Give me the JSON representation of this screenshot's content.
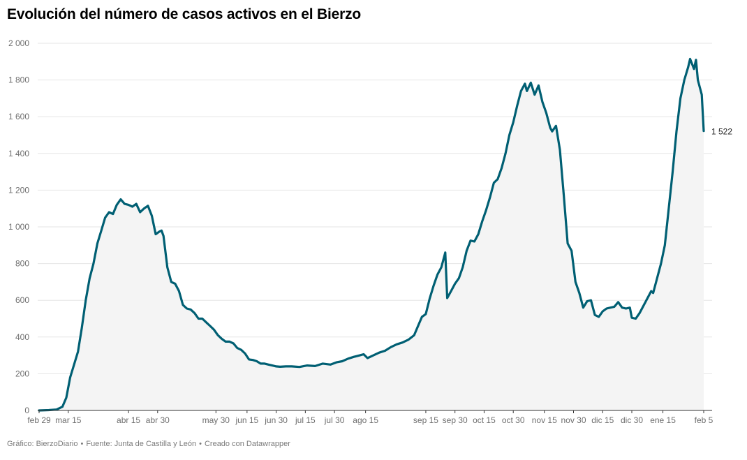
{
  "title": "Evolución del número de casos activos en el Bierzo",
  "footer": {
    "graphic": "Gráfico: BierzoDiario",
    "source": "Fuente: Junta de Castilla y León",
    "tool": "Creado con Datawrapper",
    "separator": "•"
  },
  "colors": {
    "line": "#005f73",
    "area": "#f4f4f4",
    "grid": "#e6e6e6",
    "axis": "#333333",
    "tick_text": "#6e6e6e"
  },
  "chart_data": {
    "type": "area",
    "title": "Evolución del número de casos activos en el Bierzo",
    "xlabel": "",
    "ylabel": "",
    "ylim": [
      0,
      2000
    ],
    "yticks": [
      0,
      200,
      400,
      600,
      800,
      1000,
      1200,
      1400,
      1600,
      1800,
      2000
    ],
    "ytick_labels": [
      "0",
      "200",
      "400",
      "600",
      "800",
      "1 000",
      "1 200",
      "1 400",
      "1 600",
      "1 800",
      "2 000"
    ],
    "xlim": [
      "2020-02-29",
      "2021-02-05"
    ],
    "xticks": [
      {
        "date": "2020-02-29",
        "label": "feb 29"
      },
      {
        "date": "2020-03-15",
        "label": "mar 15"
      },
      {
        "date": "2020-04-15",
        "label": "abr 15"
      },
      {
        "date": "2020-04-30",
        "label": "abr 30"
      },
      {
        "date": "2020-05-30",
        "label": "may 30"
      },
      {
        "date": "2020-06-15",
        "label": "jun 15"
      },
      {
        "date": "2020-06-30",
        "label": "jun 30"
      },
      {
        "date": "2020-07-15",
        "label": "jul 15"
      },
      {
        "date": "2020-07-30",
        "label": "jul 30"
      },
      {
        "date": "2020-08-15",
        "label": "ago 15"
      },
      {
        "date": "2020-09-15",
        "label": "sep 15"
      },
      {
        "date": "2020-09-30",
        "label": "sep 30"
      },
      {
        "date": "2020-10-15",
        "label": "oct 15"
      },
      {
        "date": "2020-10-30",
        "label": "oct 30"
      },
      {
        "date": "2020-11-15",
        "label": "nov 15"
      },
      {
        "date": "2020-11-30",
        "label": "nov 30"
      },
      {
        "date": "2020-12-15",
        "label": "dic 15"
      },
      {
        "date": "2020-12-30",
        "label": "dic 30"
      },
      {
        "date": "2021-01-15",
        "label": "ene 15"
      },
      {
        "date": "2021-02-05",
        "label": "feb 5"
      }
    ],
    "grid": true,
    "end_label": "1 522",
    "series": [
      {
        "points": [
          [
            "2020-02-29",
            0
          ],
          [
            "2020-03-05",
            2
          ],
          [
            "2020-03-09",
            5
          ],
          [
            "2020-03-12",
            20
          ],
          [
            "2020-03-14",
            70
          ],
          [
            "2020-03-16",
            180
          ],
          [
            "2020-03-18",
            250
          ],
          [
            "2020-03-20",
            320
          ],
          [
            "2020-03-22",
            450
          ],
          [
            "2020-03-24",
            600
          ],
          [
            "2020-03-26",
            720
          ],
          [
            "2020-03-28",
            800
          ],
          [
            "2020-03-30",
            910
          ],
          [
            "2020-04-01",
            980
          ],
          [
            "2020-04-03",
            1050
          ],
          [
            "2020-04-05",
            1080
          ],
          [
            "2020-04-07",
            1070
          ],
          [
            "2020-04-09",
            1120
          ],
          [
            "2020-04-11",
            1150
          ],
          [
            "2020-04-13",
            1125
          ],
          [
            "2020-04-15",
            1120
          ],
          [
            "2020-04-17",
            1110
          ],
          [
            "2020-04-19",
            1125
          ],
          [
            "2020-04-21",
            1080
          ],
          [
            "2020-04-23",
            1100
          ],
          [
            "2020-04-25",
            1115
          ],
          [
            "2020-04-27",
            1060
          ],
          [
            "2020-04-29",
            960
          ],
          [
            "2020-05-01",
            975
          ],
          [
            "2020-05-02",
            980
          ],
          [
            "2020-05-03",
            950
          ],
          [
            "2020-05-05",
            780
          ],
          [
            "2020-05-07",
            700
          ],
          [
            "2020-05-09",
            690
          ],
          [
            "2020-05-11",
            650
          ],
          [
            "2020-05-13",
            575
          ],
          [
            "2020-05-15",
            555
          ],
          [
            "2020-05-17",
            550
          ],
          [
            "2020-05-19",
            530
          ],
          [
            "2020-05-21",
            500
          ],
          [
            "2020-05-23",
            500
          ],
          [
            "2020-05-25",
            480
          ],
          [
            "2020-05-27",
            460
          ],
          [
            "2020-05-29",
            440
          ],
          [
            "2020-05-31",
            410
          ],
          [
            "2020-06-02",
            390
          ],
          [
            "2020-06-04",
            375
          ],
          [
            "2020-06-06",
            375
          ],
          [
            "2020-06-08",
            365
          ],
          [
            "2020-06-10",
            340
          ],
          [
            "2020-06-12",
            330
          ],
          [
            "2020-06-14",
            310
          ],
          [
            "2020-06-16",
            278
          ],
          [
            "2020-06-18",
            275
          ],
          [
            "2020-06-20",
            268
          ],
          [
            "2020-06-22",
            255
          ],
          [
            "2020-06-24",
            255
          ],
          [
            "2020-06-26",
            250
          ],
          [
            "2020-06-28",
            245
          ],
          [
            "2020-06-30",
            240
          ],
          [
            "2020-07-02",
            238
          ],
          [
            "2020-07-05",
            240
          ],
          [
            "2020-07-08",
            240
          ],
          [
            "2020-07-12",
            237
          ],
          [
            "2020-07-16",
            245
          ],
          [
            "2020-07-20",
            242
          ],
          [
            "2020-07-24",
            255
          ],
          [
            "2020-07-28",
            250
          ],
          [
            "2020-07-31",
            262
          ],
          [
            "2020-08-03",
            268
          ],
          [
            "2020-08-06",
            282
          ],
          [
            "2020-08-09",
            292
          ],
          [
            "2020-08-12",
            300
          ],
          [
            "2020-08-14",
            306
          ],
          [
            "2020-08-16",
            285
          ],
          [
            "2020-08-19",
            300
          ],
          [
            "2020-08-22",
            315
          ],
          [
            "2020-08-25",
            325
          ],
          [
            "2020-08-28",
            345
          ],
          [
            "2020-08-31",
            360
          ],
          [
            "2020-09-03",
            370
          ],
          [
            "2020-09-06",
            385
          ],
          [
            "2020-09-09",
            410
          ],
          [
            "2020-09-11",
            460
          ],
          [
            "2020-09-13",
            510
          ],
          [
            "2020-09-15",
            525
          ],
          [
            "2020-09-17",
            610
          ],
          [
            "2020-09-19",
            680
          ],
          [
            "2020-09-21",
            740
          ],
          [
            "2020-09-23",
            780
          ],
          [
            "2020-09-25",
            860
          ],
          [
            "2020-09-26",
            612
          ],
          [
            "2020-09-28",
            650
          ],
          [
            "2020-09-30",
            690
          ],
          [
            "2020-10-02",
            720
          ],
          [
            "2020-10-04",
            780
          ],
          [
            "2020-10-06",
            870
          ],
          [
            "2020-10-08",
            925
          ],
          [
            "2020-10-10",
            920
          ],
          [
            "2020-10-12",
            960
          ],
          [
            "2020-10-14",
            1030
          ],
          [
            "2020-10-16",
            1090
          ],
          [
            "2020-10-18",
            1160
          ],
          [
            "2020-10-20",
            1240
          ],
          [
            "2020-10-22",
            1260
          ],
          [
            "2020-10-24",
            1320
          ],
          [
            "2020-10-26",
            1400
          ],
          [
            "2020-10-28",
            1500
          ],
          [
            "2020-10-30",
            1570
          ],
          [
            "2020-11-01",
            1660
          ],
          [
            "2020-11-03",
            1740
          ],
          [
            "2020-11-05",
            1780
          ],
          [
            "2020-11-06",
            1740
          ],
          [
            "2020-11-08",
            1785
          ],
          [
            "2020-11-10",
            1720
          ],
          [
            "2020-11-12",
            1770
          ],
          [
            "2020-11-14",
            1680
          ],
          [
            "2020-11-16",
            1620
          ],
          [
            "2020-11-18",
            1540
          ],
          [
            "2020-11-19",
            1520
          ],
          [
            "2020-11-21",
            1550
          ],
          [
            "2020-11-23",
            1420
          ],
          [
            "2020-11-25",
            1170
          ],
          [
            "2020-11-27",
            910
          ],
          [
            "2020-11-29",
            870
          ],
          [
            "2020-12-01",
            700
          ],
          [
            "2020-12-03",
            640
          ],
          [
            "2020-12-05",
            560
          ],
          [
            "2020-12-07",
            595
          ],
          [
            "2020-12-09",
            600
          ],
          [
            "2020-12-11",
            520
          ],
          [
            "2020-12-13",
            510
          ],
          [
            "2020-12-15",
            540
          ],
          [
            "2020-12-17",
            555
          ],
          [
            "2020-12-19",
            560
          ],
          [
            "2020-12-21",
            565
          ],
          [
            "2020-12-23",
            590
          ],
          [
            "2020-12-25",
            560
          ],
          [
            "2020-12-27",
            555
          ],
          [
            "2020-12-29",
            560
          ],
          [
            "2020-12-30",
            505
          ],
          [
            "2021-01-01",
            500
          ],
          [
            "2021-01-03",
            530
          ],
          [
            "2021-01-06",
            590
          ],
          [
            "2021-01-09",
            650
          ],
          [
            "2021-01-10",
            640
          ],
          [
            "2021-01-12",
            720
          ],
          [
            "2021-01-14",
            800
          ],
          [
            "2021-01-16",
            900
          ],
          [
            "2021-01-18",
            1100
          ],
          [
            "2021-01-20",
            1300
          ],
          [
            "2021-01-22",
            1520
          ],
          [
            "2021-01-24",
            1700
          ],
          [
            "2021-01-26",
            1800
          ],
          [
            "2021-01-28",
            1870
          ],
          [
            "2021-01-29",
            1915
          ],
          [
            "2021-01-31",
            1860
          ],
          [
            "2021-02-01",
            1910
          ],
          [
            "2021-02-02",
            1800
          ],
          [
            "2021-02-04",
            1720
          ],
          [
            "2021-02-05",
            1522
          ]
        ]
      }
    ]
  }
}
